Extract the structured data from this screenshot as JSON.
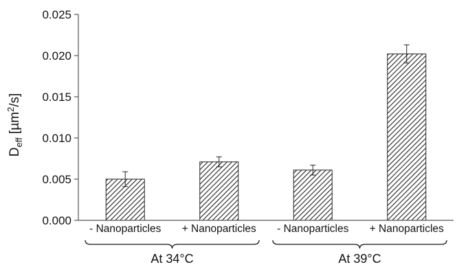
{
  "chart_data": {
    "type": "bar",
    "ylabel": "D",
    "ylabel_sub": "eff",
    "ylabel_unit_pre": " [µm",
    "ylabel_sup": "2",
    "ylabel_unit_post": "/s]",
    "ylim": [
      0,
      0.025
    ],
    "yticks": [
      0.0,
      0.005,
      0.01,
      0.015,
      0.02,
      0.025
    ],
    "ytick_labels": [
      "0.000",
      "0.005",
      "0.010",
      "0.015",
      "0.020",
      "0.025"
    ],
    "categories": [
      "- Nanoparticles",
      "+ Nanoparticles",
      "- Nanoparticles",
      "+ Nanoparticles"
    ],
    "values": [
      0.005,
      0.0071,
      0.0061,
      0.0202
    ],
    "errors": [
      0.0009,
      0.0006,
      0.0006,
      0.0011
    ],
    "groups": [
      {
        "label": "At 34°C",
        "categories": [
          0,
          1
        ]
      },
      {
        "label": "At 39°C",
        "categories": [
          2,
          3
        ]
      }
    ],
    "bar_fill": "hatched",
    "colors": {
      "bar_stroke": "#222222",
      "hatch": "#222222",
      "axis": "#555555"
    },
    "grid": false,
    "legend": "none"
  }
}
